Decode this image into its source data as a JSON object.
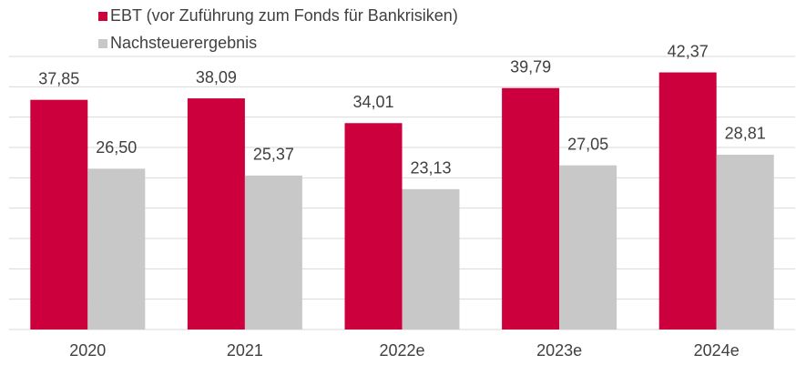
{
  "chart_data": {
    "type": "bar",
    "categories": [
      "2020",
      "2021",
      "2022e",
      "2023e",
      "2024e"
    ],
    "series": [
      {
        "name": "EBT (vor Zuführung zum Fonds für Bankrisiken)",
        "color": "#cc003d",
        "values": [
          37.85,
          38.09,
          34.01,
          39.79,
          42.37
        ],
        "value_labels": [
          "37,85",
          "38,09",
          "34,01",
          "39,79",
          "42,37"
        ]
      },
      {
        "name": "Nachsteuerergebnis",
        "color": "#c8c8c8",
        "values": [
          26.5,
          25.37,
          23.13,
          27.05,
          28.81
        ],
        "value_labels": [
          "26,50",
          "25,37",
          "23,13",
          "27,05",
          "28,81"
        ]
      }
    ],
    "ylim": [
      0,
      45
    ],
    "yticks": [
      0,
      5,
      10,
      15,
      20,
      25,
      30,
      35,
      40,
      45
    ],
    "grid": true,
    "legend": "top-left"
  }
}
